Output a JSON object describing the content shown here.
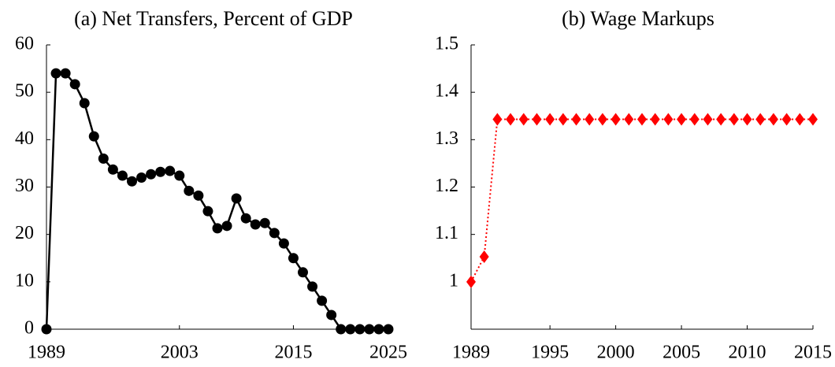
{
  "chart_data": [
    {
      "type": "line",
      "title": "(a) Net Transfers, Percent of GDP",
      "x": [
        1989,
        1990,
        1991,
        1992,
        1993,
        1994,
        1995,
        1996,
        1997,
        1998,
        1999,
        2000,
        2001,
        2002,
        2003,
        2004,
        2005,
        2006,
        2007,
        2008,
        2009,
        2010,
        2011,
        2012,
        2013,
        2014,
        2015,
        2016,
        2017,
        2018,
        2019,
        2020,
        2021,
        2022,
        2023,
        2024,
        2025
      ],
      "values": [
        0,
        54,
        54,
        51.7,
        47.7,
        40.7,
        36,
        33.7,
        32.4,
        31.2,
        32,
        32.7,
        33.2,
        33.4,
        32.4,
        29.2,
        28.2,
        24.9,
        21.3,
        21.8,
        27.6,
        23.4,
        22.1,
        22.4,
        20.3,
        18.1,
        15,
        12,
        9,
        6,
        3,
        0,
        0,
        0,
        0,
        0,
        0
      ],
      "color": "#000000",
      "marker": "circle",
      "line_style": "solid",
      "xlim": [
        1989,
        2025
      ],
      "xticks": [
        1989,
        2003,
        2015,
        2025
      ],
      "ylim": [
        0,
        60
      ],
      "yticks": [
        0,
        10,
        20,
        30,
        40,
        50,
        60
      ]
    },
    {
      "type": "line",
      "title": "(b) Wage Markups",
      "x": [
        1989,
        1990,
        1991,
        1992,
        1993,
        1994,
        1995,
        1996,
        1997,
        1998,
        1999,
        2000,
        2001,
        2002,
        2003,
        2004,
        2005,
        2006,
        2007,
        2008,
        2009,
        2010,
        2011,
        2012,
        2013,
        2014,
        2015
      ],
      "values": [
        1,
        1.053,
        1.343,
        1.343,
        1.343,
        1.343,
        1.343,
        1.343,
        1.343,
        1.343,
        1.343,
        1.343,
        1.343,
        1.343,
        1.343,
        1.343,
        1.343,
        1.343,
        1.343,
        1.343,
        1.343,
        1.343,
        1.343,
        1.343,
        1.343,
        1.343,
        1.343
      ],
      "color": "#ff0000",
      "marker": "diamond",
      "line_style": "dotted",
      "xlim": [
        1989,
        2015
      ],
      "xticks": [
        1989,
        1995,
        2000,
        2005,
        2010,
        2015
      ],
      "ylim": [
        0.9,
        1.5
      ],
      "yticks": [
        1,
        1.1,
        1.2,
        1.3,
        1.4,
        1.5
      ]
    }
  ]
}
